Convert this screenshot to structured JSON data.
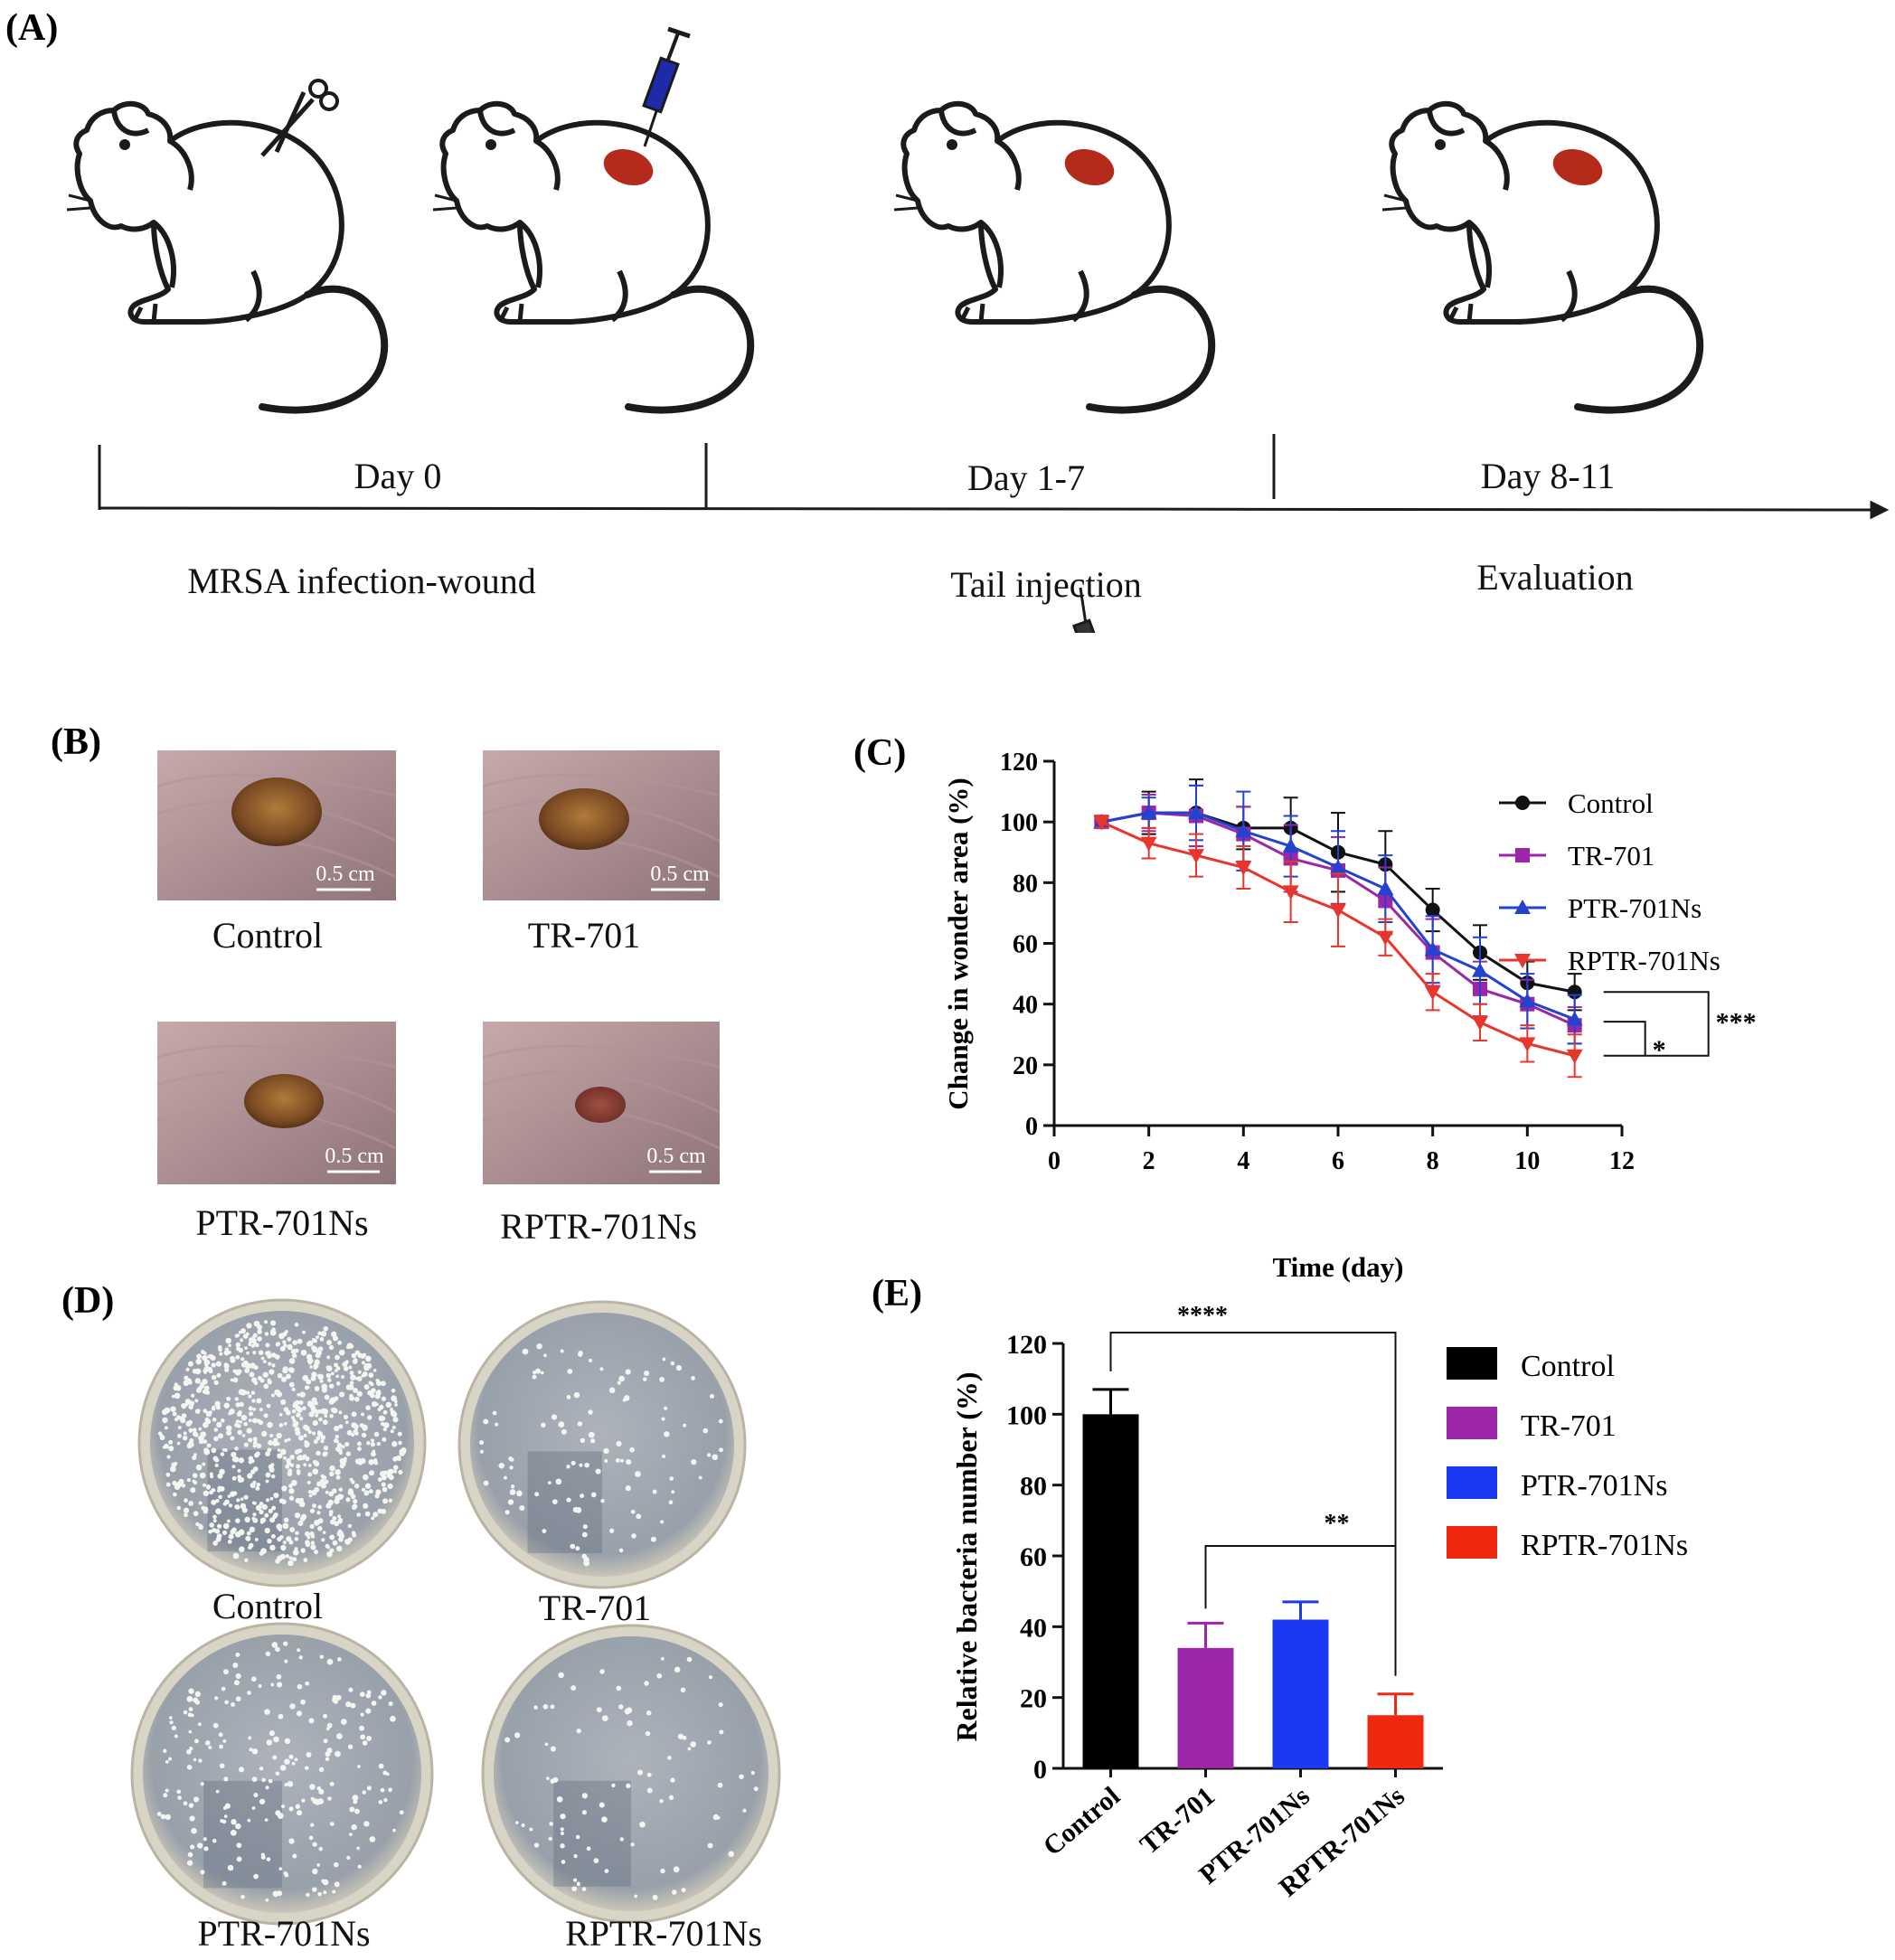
{
  "panels": {
    "a": {
      "label": "(A)"
    },
    "b": {
      "label": "(B)"
    },
    "c": {
      "label": "(C)"
    },
    "d": {
      "label": "(D)"
    },
    "e": {
      "label": "(E)"
    }
  },
  "timeline": {
    "phases": [
      {
        "day": "Day 0",
        "desc": "MRSA infection-wound"
      },
      {
        "day": "Day 1-7",
        "desc": "Tail injection"
      },
      {
        "day": "Day 8-11",
        "desc": "Evaluation"
      }
    ]
  },
  "wounds": {
    "scale_bar": "0.5 cm",
    "items": [
      {
        "label": "Control"
      },
      {
        "label": "TR-701"
      },
      {
        "label": "PTR-701Ns"
      },
      {
        "label": "RPTR-701Ns"
      }
    ]
  },
  "plates": {
    "items": [
      {
        "label": "Control"
      },
      {
        "label": "TR-701"
      },
      {
        "label": "PTR-701Ns"
      },
      {
        "label": "RPTR-701Ns"
      }
    ]
  },
  "chart_data": [
    {
      "type": "line",
      "title": "",
      "xlabel": "Time (day)",
      "ylabel": "Change in wonder area (%)",
      "xlim": [
        0,
        12
      ],
      "ylim": [
        0,
        120
      ],
      "xticks": [
        0,
        2,
        4,
        6,
        8,
        10,
        12
      ],
      "yticks": [
        0,
        20,
        40,
        60,
        80,
        100,
        120
      ],
      "x": [
        1,
        2,
        3,
        4,
        5,
        6,
        7,
        8,
        9,
        10,
        11
      ],
      "legend_position": "top-right",
      "series": [
        {
          "name": "Control",
          "color": "#111111",
          "marker": "circle",
          "values": [
            100,
            103,
            103,
            98,
            98,
            90,
            86,
            71,
            57,
            47,
            44
          ],
          "errors": [
            2,
            7,
            11,
            7,
            10,
            13,
            11,
            7,
            9,
            7,
            6
          ]
        },
        {
          "name": "TR-701",
          "color": "#9b27a8",
          "marker": "square",
          "values": [
            100,
            103,
            102,
            96,
            88,
            84,
            74,
            57,
            45,
            40,
            33
          ],
          "errors": [
            2,
            6,
            10,
            9,
            11,
            11,
            11,
            11,
            9,
            8,
            6
          ]
        },
        {
          "name": "PTR-701Ns",
          "color": "#2343cf",
          "marker": "triangle-up",
          "values": [
            100,
            103,
            103,
            97,
            92,
            85,
            78,
            58,
            51,
            41,
            35
          ],
          "errors": [
            2,
            5,
            9,
            13,
            10,
            12,
            11,
            11,
            11,
            9,
            8
          ]
        },
        {
          "name": "RPTR-701Ns",
          "color": "#e8362d",
          "marker": "triangle-down",
          "values": [
            100,
            93,
            89,
            85,
            77,
            71,
            62,
            44,
            34,
            27,
            23
          ],
          "errors": [
            2,
            5,
            7,
            7,
            10,
            12,
            6,
            6,
            6,
            6,
            7
          ]
        }
      ],
      "annotations": [
        {
          "label": "***",
          "between": [
            "Control",
            "RPTR-701Ns"
          ]
        },
        {
          "label": "*",
          "between": [
            "TR-701",
            "RPTR-701Ns"
          ]
        }
      ]
    },
    {
      "type": "bar",
      "title": "",
      "xlabel": "",
      "ylabel": "Relative bacteria number (%)",
      "ylim": [
        0,
        120
      ],
      "yticks": [
        0,
        20,
        40,
        60,
        80,
        100,
        120
      ],
      "categories": [
        "Control",
        "TR-701",
        "PTR-701Ns",
        "RPTR-701Ns"
      ],
      "values": [
        100,
        34,
        42,
        15
      ],
      "errors": [
        7,
        7,
        5,
        6
      ],
      "colors": [
        "#000000",
        "#9b27a8",
        "#1a39f0",
        "#f0280f"
      ],
      "legend_position": "right",
      "legend": [
        "Control",
        "TR-701",
        "PTR-701Ns",
        "RPTR-701Ns"
      ],
      "annotations": [
        {
          "label": "****",
          "between": [
            "Control",
            "RPTR-701Ns"
          ]
        },
        {
          "label": "**",
          "between": [
            "TR-701",
            "RPTR-701Ns"
          ]
        }
      ]
    }
  ]
}
